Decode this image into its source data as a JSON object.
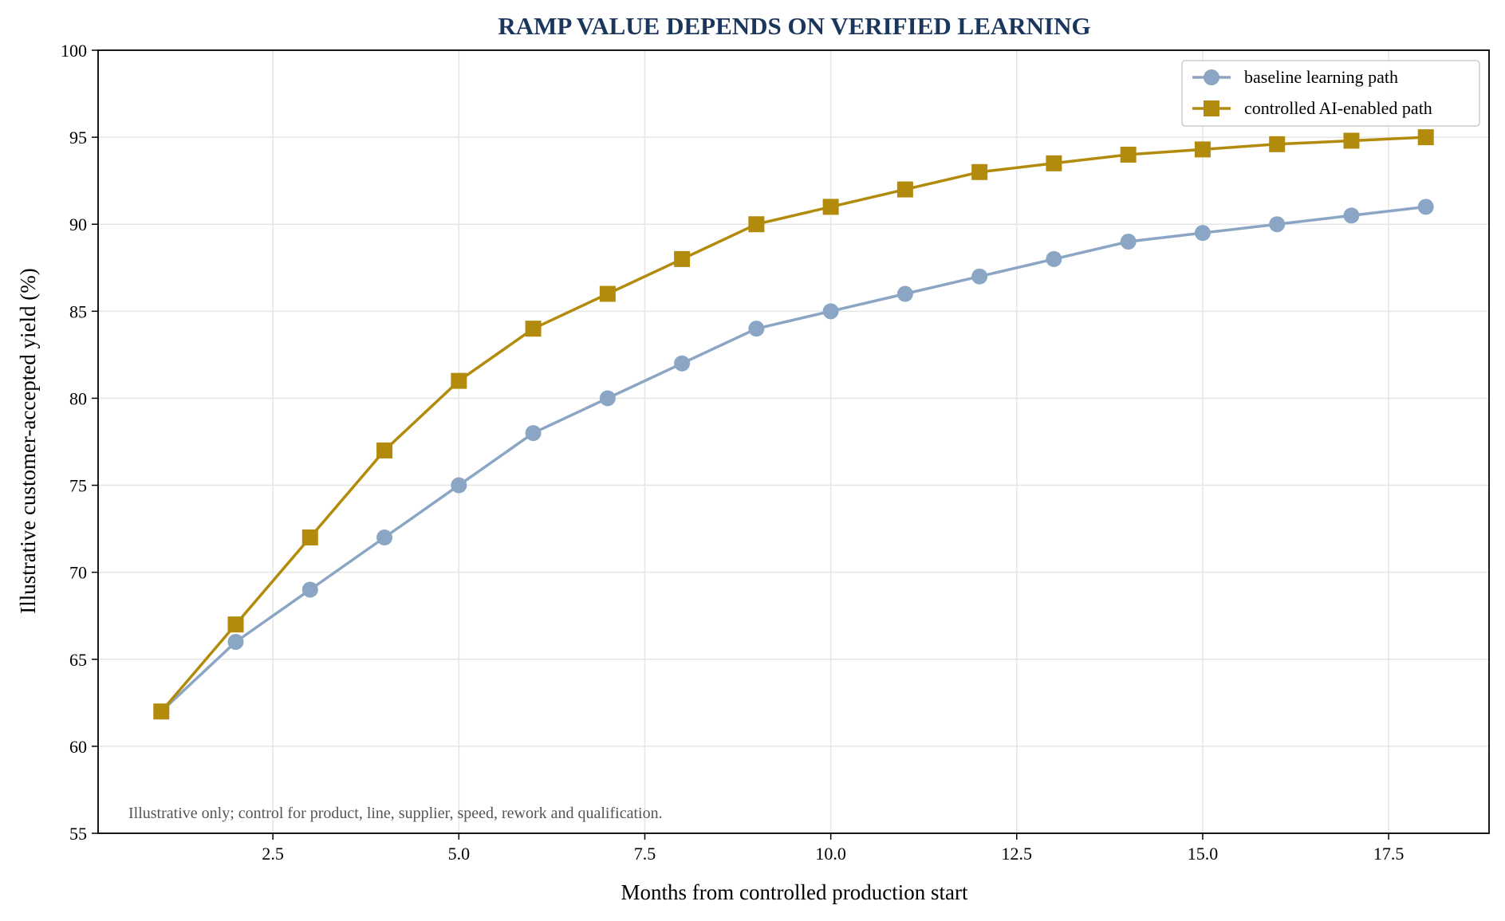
{
  "chart_data": {
    "type": "line",
    "title": "RAMP VALUE DEPENDS ON VERIFIED LEARNING",
    "xlabel": "Months from controlled production start",
    "ylabel": "Illustrative customer-accepted yield (%)",
    "xlim": [
      0.15,
      18.85
    ],
    "ylim": [
      55,
      100
    ],
    "xticks": [
      2.5,
      5.0,
      7.5,
      10.0,
      12.5,
      15.0,
      17.5
    ],
    "xtick_labels": [
      "2.5",
      "5.0",
      "7.5",
      "10.0",
      "12.5",
      "15.0",
      "17.5"
    ],
    "yticks": [
      55,
      60,
      65,
      70,
      75,
      80,
      85,
      90,
      95,
      100
    ],
    "ytick_labels": [
      "55",
      "60",
      "65",
      "70",
      "75",
      "80",
      "85",
      "90",
      "95",
      "100"
    ],
    "grid": true,
    "legend_position": "top-right",
    "x": [
      1,
      2,
      3,
      4,
      5,
      6,
      7,
      8,
      9,
      10,
      11,
      12,
      13,
      14,
      15,
      16,
      17,
      18
    ],
    "series": [
      {
        "name": "baseline learning path",
        "color": "#8aa6c4",
        "marker": "circle",
        "values": [
          62,
          66,
          69,
          72,
          75,
          78,
          80,
          82,
          84,
          85,
          86,
          87,
          88,
          89,
          89.5,
          90,
          90.5,
          91
        ]
      },
      {
        "name": "controlled AI-enabled path",
        "color": "#b38b0c",
        "marker": "square",
        "values": [
          62,
          67,
          72,
          77,
          81,
          84,
          86,
          88,
          90,
          91,
          92,
          93,
          93.5,
          94,
          94.3,
          94.6,
          94.8,
          95
        ]
      }
    ],
    "annotation": "Illustrative only; control for product, line, supplier, speed, rework and qualification."
  }
}
